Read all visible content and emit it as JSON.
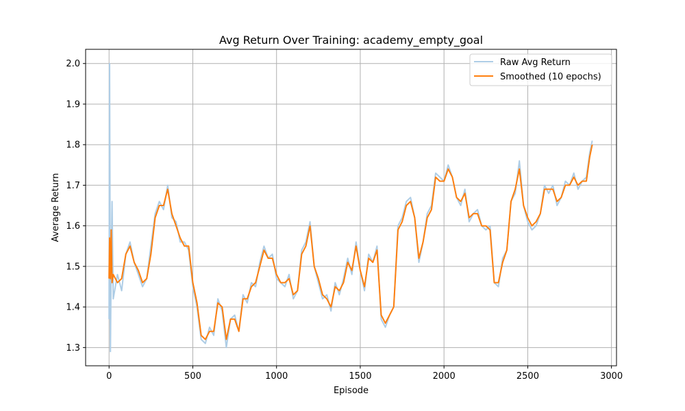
{
  "chart_data": {
    "type": "line",
    "title": "Avg Return Over Training: academy_empty_goal",
    "xlabel": "Episode",
    "ylabel": "Average Return",
    "xlim": [
      -140,
      3030
    ],
    "ylim": [
      1.255,
      2.035
    ],
    "xticks": [
      0,
      500,
      1000,
      1500,
      2000,
      2500,
      3000
    ],
    "yticks": [
      1.3,
      1.4,
      1.5,
      1.6,
      1.7,
      1.8,
      1.9,
      2.0
    ],
    "grid": true,
    "legend_position": "top-right",
    "colors": {
      "raw": "#aecde6",
      "smoothed": "#ff7f0e",
      "grid": "#b0b0b0",
      "axis": "#000000"
    },
    "series": [
      {
        "name": "Raw Avg Return",
        "x": [
          0,
          3,
          8,
          13,
          18,
          25,
          50,
          75,
          100,
          125,
          150,
          175,
          200,
          225,
          250,
          275,
          300,
          325,
          350,
          375,
          400,
          425,
          450,
          475,
          500,
          525,
          550,
          575,
          600,
          625,
          650,
          675,
          700,
          725,
          750,
          775,
          800,
          825,
          850,
          875,
          900,
          925,
          950,
          975,
          1000,
          1025,
          1050,
          1075,
          1100,
          1125,
          1150,
          1175,
          1200,
          1225,
          1250,
          1275,
          1300,
          1325,
          1350,
          1375,
          1400,
          1425,
          1450,
          1475,
          1500,
          1525,
          1550,
          1575,
          1600,
          1625,
          1650,
          1675,
          1700,
          1725,
          1750,
          1775,
          1800,
          1825,
          1850,
          1875,
          1900,
          1925,
          1950,
          1975,
          2000,
          2025,
          2050,
          2075,
          2100,
          2125,
          2150,
          2175,
          2200,
          2225,
          2250,
          2275,
          2300,
          2325,
          2350,
          2375,
          2400,
          2425,
          2450,
          2475,
          2500,
          2525,
          2550,
          2575,
          2600,
          2625,
          2650,
          2675,
          2700,
          2725,
          2750,
          2775,
          2800,
          2825,
          2850,
          2870,
          2885
        ],
        "y": [
          1.37,
          2.0,
          1.29,
          1.52,
          1.66,
          1.42,
          1.48,
          1.44,
          1.53,
          1.56,
          1.51,
          1.48,
          1.45,
          1.47,
          1.55,
          1.63,
          1.66,
          1.64,
          1.7,
          1.62,
          1.61,
          1.56,
          1.56,
          1.54,
          1.45,
          1.4,
          1.32,
          1.31,
          1.35,
          1.33,
          1.42,
          1.39,
          1.3,
          1.37,
          1.38,
          1.34,
          1.43,
          1.41,
          1.46,
          1.45,
          1.51,
          1.55,
          1.52,
          1.53,
          1.47,
          1.46,
          1.45,
          1.48,
          1.42,
          1.44,
          1.54,
          1.56,
          1.61,
          1.5,
          1.46,
          1.42,
          1.43,
          1.39,
          1.46,
          1.43,
          1.47,
          1.52,
          1.48,
          1.56,
          1.49,
          1.44,
          1.53,
          1.51,
          1.55,
          1.37,
          1.35,
          1.38,
          1.4,
          1.6,
          1.62,
          1.66,
          1.67,
          1.62,
          1.51,
          1.56,
          1.63,
          1.65,
          1.73,
          1.72,
          1.71,
          1.75,
          1.72,
          1.67,
          1.65,
          1.69,
          1.61,
          1.63,
          1.64,
          1.6,
          1.59,
          1.6,
          1.46,
          1.45,
          1.52,
          1.54,
          1.66,
          1.68,
          1.76,
          1.65,
          1.61,
          1.59,
          1.6,
          1.63,
          1.7,
          1.68,
          1.7,
          1.65,
          1.67,
          1.71,
          1.7,
          1.73,
          1.69,
          1.71,
          1.72,
          1.78,
          1.81
        ]
      },
      {
        "name": "Smoothed (10 epochs)",
        "x": [
          0,
          3,
          8,
          13,
          18,
          25,
          50,
          75,
          100,
          125,
          150,
          175,
          200,
          225,
          250,
          275,
          300,
          325,
          350,
          375,
          400,
          425,
          450,
          475,
          500,
          525,
          550,
          575,
          600,
          625,
          650,
          675,
          700,
          725,
          750,
          775,
          800,
          825,
          850,
          875,
          900,
          925,
          950,
          975,
          1000,
          1025,
          1050,
          1075,
          1100,
          1125,
          1150,
          1175,
          1200,
          1225,
          1250,
          1275,
          1300,
          1325,
          1350,
          1375,
          1400,
          1425,
          1450,
          1475,
          1500,
          1525,
          1550,
          1575,
          1600,
          1625,
          1650,
          1675,
          1700,
          1725,
          1750,
          1775,
          1800,
          1825,
          1850,
          1875,
          1900,
          1925,
          1950,
          1975,
          2000,
          2025,
          2050,
          2075,
          2100,
          2125,
          2150,
          2175,
          2200,
          2225,
          2250,
          2275,
          2300,
          2325,
          2350,
          2375,
          2400,
          2425,
          2450,
          2475,
          2500,
          2525,
          2550,
          2575,
          2600,
          2625,
          2650,
          2675,
          2700,
          2725,
          2750,
          2775,
          2800,
          2825,
          2850,
          2870,
          2885
        ],
        "y": [
          1.47,
          1.57,
          1.47,
          1.59,
          1.46,
          1.48,
          1.46,
          1.47,
          1.53,
          1.55,
          1.51,
          1.49,
          1.46,
          1.47,
          1.53,
          1.62,
          1.65,
          1.65,
          1.69,
          1.63,
          1.6,
          1.57,
          1.55,
          1.55,
          1.46,
          1.41,
          1.33,
          1.32,
          1.34,
          1.34,
          1.41,
          1.4,
          1.32,
          1.37,
          1.37,
          1.34,
          1.42,
          1.42,
          1.45,
          1.46,
          1.5,
          1.54,
          1.52,
          1.52,
          1.48,
          1.46,
          1.46,
          1.47,
          1.43,
          1.44,
          1.53,
          1.55,
          1.6,
          1.5,
          1.47,
          1.43,
          1.42,
          1.4,
          1.45,
          1.44,
          1.46,
          1.51,
          1.49,
          1.55,
          1.49,
          1.45,
          1.52,
          1.51,
          1.54,
          1.38,
          1.36,
          1.38,
          1.4,
          1.59,
          1.61,
          1.65,
          1.66,
          1.62,
          1.52,
          1.56,
          1.62,
          1.64,
          1.72,
          1.71,
          1.71,
          1.74,
          1.72,
          1.67,
          1.66,
          1.68,
          1.62,
          1.63,
          1.63,
          1.6,
          1.6,
          1.59,
          1.46,
          1.46,
          1.51,
          1.54,
          1.66,
          1.69,
          1.74,
          1.65,
          1.62,
          1.6,
          1.61,
          1.63,
          1.69,
          1.69,
          1.69,
          1.66,
          1.67,
          1.7,
          1.7,
          1.72,
          1.7,
          1.71,
          1.71,
          1.77,
          1.8
        ]
      }
    ]
  }
}
